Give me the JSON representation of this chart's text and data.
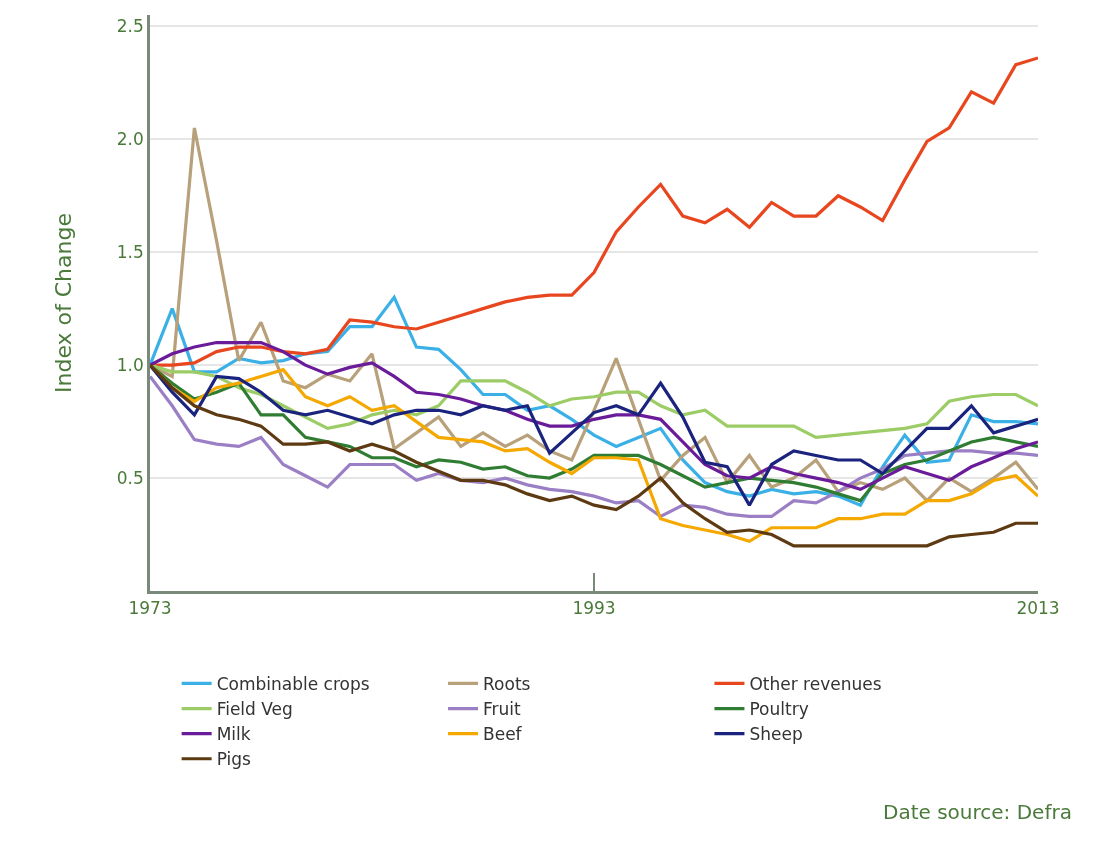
{
  "chart_data": {
    "type": "line",
    "ylabel": "Index of Change",
    "x": [
      1973,
      1974,
      1975,
      1976,
      1977,
      1978,
      1979,
      1980,
      1981,
      1982,
      1983,
      1984,
      1985,
      1986,
      1987,
      1988,
      1989,
      1990,
      1991,
      1992,
      1993,
      1994,
      1995,
      1996,
      1997,
      1998,
      1999,
      2000,
      2001,
      2002,
      2003,
      2004,
      2005,
      2006,
      2007,
      2008,
      2009,
      2010,
      2011,
      2012,
      2013
    ],
    "xlim": [
      1973,
      2013
    ],
    "xticks": [
      1973,
      1993,
      2013
    ],
    "ylim": [
      0,
      2.55
    ],
    "yticks": [
      0.5,
      {
        "value": 1.0,
        "label": "1.0"
      },
      1.5,
      {
        "value": 2.0,
        "label": "2.0"
      },
      2.5
    ],
    "grid": "y",
    "legend": "bottom",
    "line_style": "solid",
    "annotations": [
      "Date source: Defra"
    ],
    "series": [
      {
        "name": "Combinable crops",
        "color": "#3bb0e6",
        "values": [
          1.0,
          1.25,
          0.97,
          0.97,
          1.03,
          1.01,
          1.02,
          1.05,
          1.06,
          1.17,
          1.17,
          1.3,
          1.08,
          1.07,
          0.98,
          0.87,
          0.87,
          0.8,
          0.82,
          0.76,
          0.69,
          0.64,
          0.68,
          0.72,
          0.58,
          0.48,
          0.44,
          0.42,
          0.45,
          0.43,
          0.44,
          0.42,
          0.38,
          0.55,
          0.69,
          0.57,
          0.58,
          0.78,
          0.75,
          0.75,
          0.74
        ]
      },
      {
        "name": "Roots",
        "color": "#b8a07a",
        "values": [
          1.0,
          0.95,
          2.05,
          1.55,
          1.02,
          1.19,
          0.93,
          0.9,
          0.96,
          0.93,
          1.05,
          0.63,
          0.7,
          0.77,
          0.64,
          0.7,
          0.64,
          0.69,
          0.62,
          0.58,
          0.8,
          1.03,
          0.76,
          0.49,
          0.6,
          0.68,
          0.48,
          0.6,
          0.46,
          0.5,
          0.58,
          0.44,
          0.48,
          0.45,
          0.5,
          0.4,
          0.5,
          0.44,
          0.5,
          0.57,
          0.45
        ]
      },
      {
        "name": "Other revenues",
        "color": "#e8461e",
        "values": [
          1.0,
          1.0,
          1.01,
          1.06,
          1.08,
          1.08,
          1.06,
          1.05,
          1.07,
          1.2,
          1.19,
          1.17,
          1.16,
          1.19,
          1.22,
          1.25,
          1.28,
          1.3,
          1.31,
          1.31,
          1.41,
          1.59,
          1.7,
          1.8,
          1.66,
          1.63,
          1.69,
          1.61,
          1.72,
          1.66,
          1.66,
          1.75,
          1.7,
          1.64,
          1.82,
          1.99,
          2.05,
          2.21,
          2.16,
          2.33,
          2.36
        ]
      },
      {
        "name": "Field Veg",
        "color": "#9ccc65",
        "values": [
          1.0,
          0.97,
          0.97,
          0.95,
          0.9,
          0.87,
          0.82,
          0.77,
          0.72,
          0.74,
          0.78,
          0.8,
          0.78,
          0.82,
          0.93,
          0.93,
          0.93,
          0.88,
          0.82,
          0.85,
          0.86,
          0.88,
          0.88,
          0.82,
          0.78,
          0.8,
          0.73,
          0.73,
          0.73,
          0.73,
          0.68,
          0.69,
          0.7,
          0.71,
          0.72,
          0.74,
          0.84,
          0.86,
          0.87,
          0.87,
          0.82
        ]
      },
      {
        "name": "Fruit",
        "color": "#9b7fc4",
        "values": [
          0.95,
          0.82,
          0.67,
          0.65,
          0.64,
          0.68,
          0.56,
          0.51,
          0.46,
          0.56,
          0.56,
          0.56,
          0.49,
          0.52,
          0.49,
          0.48,
          0.5,
          0.47,
          0.45,
          0.44,
          0.42,
          0.39,
          0.4,
          0.33,
          0.38,
          0.37,
          0.34,
          0.33,
          0.33,
          0.4,
          0.39,
          0.44,
          0.5,
          0.54,
          0.6,
          0.61,
          0.62,
          0.62,
          0.61,
          0.61,
          0.6
        ]
      },
      {
        "name": "Poultry",
        "color": "#2e7d32",
        "values": [
          1.0,
          0.92,
          0.85,
          0.88,
          0.92,
          0.78,
          0.78,
          0.68,
          0.66,
          0.64,
          0.59,
          0.59,
          0.55,
          0.58,
          0.57,
          0.54,
          0.55,
          0.51,
          0.5,
          0.54,
          0.6,
          0.6,
          0.6,
          0.56,
          0.51,
          0.46,
          0.48,
          0.5,
          0.49,
          0.48,
          0.46,
          0.43,
          0.4,
          0.52,
          0.56,
          0.58,
          0.62,
          0.66,
          0.68,
          0.66,
          0.64
        ]
      },
      {
        "name": "Milk",
        "color": "#6a1b9a",
        "values": [
          1.0,
          1.05,
          1.08,
          1.1,
          1.1,
          1.1,
          1.06,
          1.0,
          0.96,
          0.99,
          1.01,
          0.95,
          0.88,
          0.87,
          0.85,
          0.82,
          0.8,
          0.76,
          0.73,
          0.73,
          0.76,
          0.78,
          0.78,
          0.76,
          0.66,
          0.56,
          0.51,
          0.5,
          0.55,
          0.52,
          0.5,
          0.48,
          0.45,
          0.5,
          0.55,
          0.52,
          0.49,
          0.55,
          0.59,
          0.63,
          0.66
        ]
      },
      {
        "name": "Beef",
        "color": "#f5a800",
        "values": [
          1.0,
          0.9,
          0.84,
          0.9,
          0.92,
          0.95,
          0.98,
          0.86,
          0.82,
          0.86,
          0.8,
          0.82,
          0.75,
          0.68,
          0.67,
          0.66,
          0.62,
          0.63,
          0.57,
          0.52,
          0.59,
          0.59,
          0.58,
          0.32,
          0.29,
          0.27,
          0.25,
          0.22,
          0.28,
          0.28,
          0.28,
          0.32,
          0.32,
          0.34,
          0.34,
          0.4,
          0.4,
          0.43,
          0.49,
          0.51,
          0.42
        ]
      },
      {
        "name": "Sheep",
        "color": "#1a237e",
        "values": [
          1.0,
          0.88,
          0.78,
          0.95,
          0.94,
          0.88,
          0.8,
          0.78,
          0.8,
          0.77,
          0.74,
          0.78,
          0.8,
          0.8,
          0.78,
          0.82,
          0.8,
          0.82,
          0.61,
          0.7,
          0.79,
          0.82,
          0.78,
          0.92,
          0.77,
          0.57,
          0.55,
          0.38,
          0.56,
          0.62,
          0.6,
          0.58,
          0.58,
          0.52,
          0.62,
          0.72,
          0.72,
          0.82,
          0.7,
          0.73,
          0.76
        ]
      },
      {
        "name": "Pigs",
        "color": "#5d3a12",
        "values": [
          1.0,
          0.9,
          0.82,
          0.78,
          0.76,
          0.73,
          0.65,
          0.65,
          0.66,
          0.62,
          0.65,
          0.62,
          0.57,
          0.53,
          0.49,
          0.49,
          0.47,
          0.43,
          0.4,
          0.42,
          0.38,
          0.36,
          0.42,
          0.5,
          0.39,
          0.32,
          0.26,
          0.27,
          0.25,
          0.2,
          0.2,
          0.2,
          0.2,
          0.2,
          0.2,
          0.2,
          0.24,
          0.25,
          0.26,
          0.3,
          0.3
        ]
      }
    ]
  }
}
